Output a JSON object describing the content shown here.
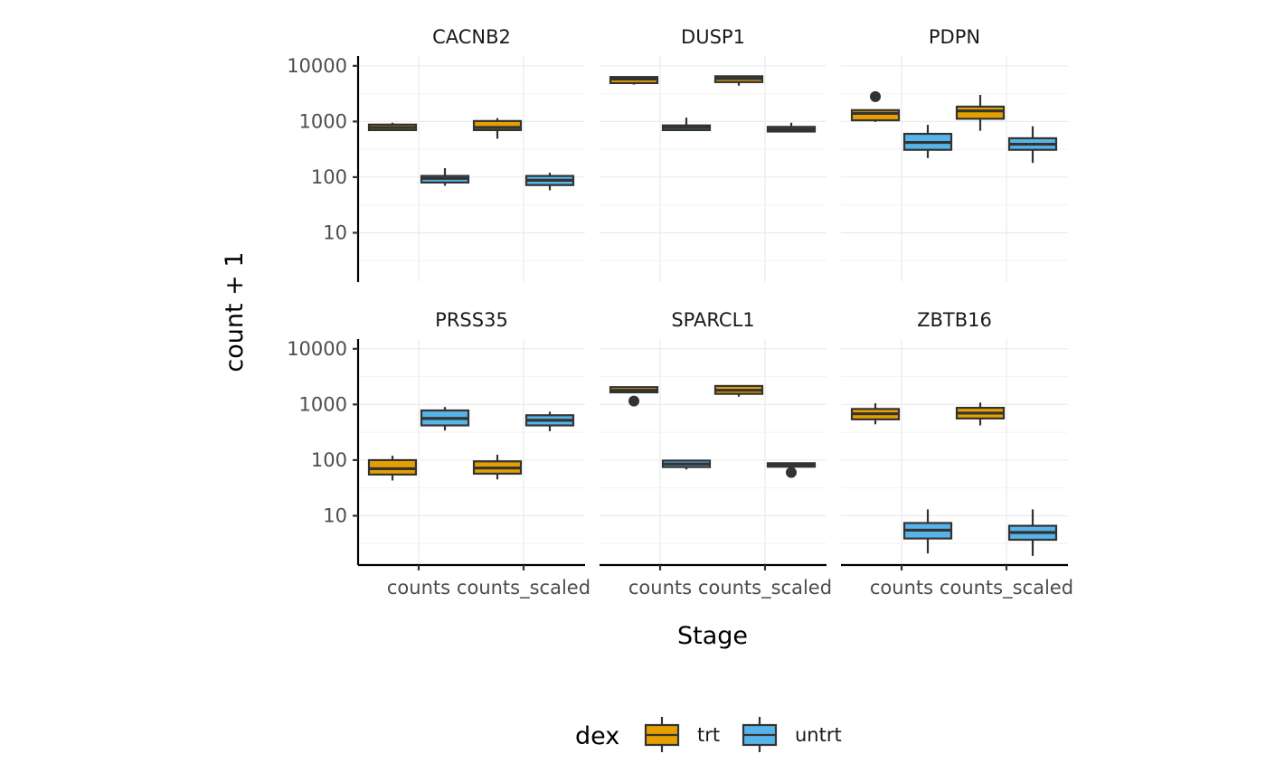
{
  "chart_data": {
    "type": "boxplot",
    "y_scale": "log10",
    "x_axis_title": "Stage",
    "y_axis_title": "count + 1",
    "categories": [
      "counts",
      "counts_scaled"
    ],
    "y_ticks": [
      10,
      100,
      1000,
      10000
    ],
    "y_tick_labels": [
      "10",
      "100",
      "1000",
      "10000"
    ],
    "ylim": [
      1.3,
      15000
    ],
    "grid": true,
    "legend": {
      "title": "dex",
      "position": "bottom",
      "entries": [
        {
          "label": "trt",
          "color": "#E69F00"
        },
        {
          "label": "untrt",
          "color": "#56B4E9"
        }
      ]
    },
    "facets": [
      {
        "title": "CACNB2",
        "boxes": [
          {
            "category": "counts",
            "group": "trt",
            "min": 700,
            "q1": 700,
            "median": 780,
            "q3": 880,
            "max": 950,
            "outliers": []
          },
          {
            "category": "counts",
            "group": "untrt",
            "min": 70,
            "q1": 80,
            "median": 95,
            "q3": 105,
            "max": 145,
            "outliers": []
          },
          {
            "category": "counts_scaled",
            "group": "trt",
            "min": 490,
            "q1": 700,
            "median": 780,
            "q3": 1020,
            "max": 1150,
            "outliers": []
          },
          {
            "category": "counts_scaled",
            "group": "untrt",
            "min": 58,
            "q1": 72,
            "median": 88,
            "q3": 105,
            "max": 120,
            "outliers": []
          }
        ]
      },
      {
        "title": "DUSP1",
        "boxes": [
          {
            "category": "counts",
            "group": "trt",
            "min": 4600,
            "q1": 4900,
            "median": 5800,
            "q3": 6300,
            "max": 6400,
            "outliers": []
          },
          {
            "category": "counts",
            "group": "untrt",
            "min": 680,
            "q1": 700,
            "median": 780,
            "q3": 850,
            "max": 1170,
            "outliers": []
          },
          {
            "category": "counts_scaled",
            "group": "trt",
            "min": 4400,
            "q1": 5100,
            "median": 5900,
            "q3": 6500,
            "max": 6600,
            "outliers": []
          },
          {
            "category": "counts_scaled",
            "group": "untrt",
            "min": 650,
            "q1": 660,
            "median": 720,
            "q3": 800,
            "max": 950,
            "outliers": []
          }
        ]
      },
      {
        "title": "PDPN",
        "boxes": [
          {
            "category": "counts",
            "group": "trt",
            "min": 980,
            "q1": 1050,
            "median": 1400,
            "q3": 1600,
            "max": 1650,
            "outliers": [
              2800
            ]
          },
          {
            "category": "counts",
            "group": "untrt",
            "min": 220,
            "q1": 310,
            "median": 420,
            "q3": 600,
            "max": 870,
            "outliers": []
          },
          {
            "category": "counts_scaled",
            "group": "trt",
            "min": 680,
            "q1": 1120,
            "median": 1550,
            "q3": 1850,
            "max": 3000,
            "outliers": []
          },
          {
            "category": "counts_scaled",
            "group": "untrt",
            "min": 180,
            "q1": 310,
            "median": 390,
            "q3": 500,
            "max": 820,
            "outliers": []
          }
        ]
      },
      {
        "title": "PRSS35",
        "boxes": [
          {
            "category": "counts",
            "group": "trt",
            "min": 43,
            "q1": 55,
            "median": 70,
            "q3": 100,
            "max": 120,
            "outliers": []
          },
          {
            "category": "counts",
            "group": "untrt",
            "min": 340,
            "q1": 420,
            "median": 560,
            "q3": 780,
            "max": 900,
            "outliers": []
          },
          {
            "category": "counts_scaled",
            "group": "trt",
            "min": 45,
            "q1": 57,
            "median": 72,
            "q3": 95,
            "max": 125,
            "outliers": []
          },
          {
            "category": "counts_scaled",
            "group": "untrt",
            "min": 330,
            "q1": 420,
            "median": 520,
            "q3": 640,
            "max": 740,
            "outliers": []
          }
        ]
      },
      {
        "title": "SPARCL1",
        "boxes": [
          {
            "category": "counts",
            "group": "trt",
            "min": 1600,
            "q1": 1650,
            "median": 1800,
            "q3": 2050,
            "max": 2100,
            "outliers": [
              1150
            ]
          },
          {
            "category": "counts",
            "group": "untrt",
            "min": 68,
            "q1": 75,
            "median": 85,
            "q3": 98,
            "max": 100,
            "outliers": []
          },
          {
            "category": "counts_scaled",
            "group": "trt",
            "min": 1380,
            "q1": 1550,
            "median": 1800,
            "q3": 2150,
            "max": 2200,
            "outliers": []
          },
          {
            "category": "counts_scaled",
            "group": "untrt",
            "min": 75,
            "q1": 76,
            "median": 82,
            "q3": 88,
            "max": 90,
            "outliers": [
              60
            ]
          }
        ]
      },
      {
        "title": "ZBTB16",
        "boxes": [
          {
            "category": "counts",
            "group": "trt",
            "min": 440,
            "q1": 540,
            "median": 680,
            "q3": 830,
            "max": 1050,
            "outliers": []
          },
          {
            "category": "counts",
            "group": "untrt",
            "min": 2.1,
            "q1": 3.9,
            "median": 5.5,
            "q3": 7.4,
            "max": 13,
            "outliers": []
          },
          {
            "category": "counts_scaled",
            "group": "trt",
            "min": 420,
            "q1": 560,
            "median": 700,
            "q3": 870,
            "max": 1080,
            "outliers": []
          },
          {
            "category": "counts_scaled",
            "group": "untrt",
            "min": 1.9,
            "q1": 3.7,
            "median": 5.0,
            "q3": 6.6,
            "max": 13,
            "outliers": []
          }
        ]
      }
    ]
  }
}
